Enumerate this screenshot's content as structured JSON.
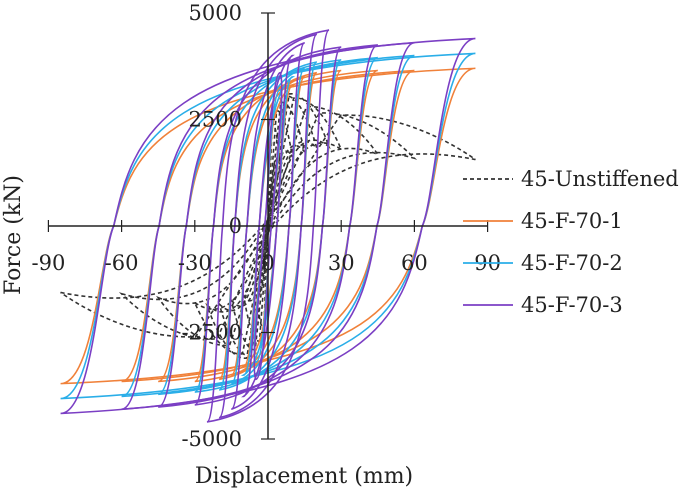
{
  "chart_data": {
    "type": "line",
    "title": "",
    "xlabel": "Displacement (mm)",
    "ylabel": "Force (kN)",
    "xlim": [
      -90,
      90
    ],
    "ylim": [
      -5000,
      5000
    ],
    "x_ticks": [
      -90,
      -60,
      -30,
      0,
      30,
      60,
      90
    ],
    "x_tick_labels": [
      "-90",
      "-60",
      "-30",
      "0",
      "30",
      "60",
      "90"
    ],
    "y_ticks": [
      -5000,
      -2500,
      0,
      2500,
      5000
    ],
    "y_tick_labels": [
      "-5000",
      "-2500",
      "0",
      "2500",
      "5000"
    ],
    "grid": false,
    "legend_position": "right",
    "series": [
      {
        "name": "45-Unstiffened",
        "color": "#333333",
        "dash": "dashed",
        "peak_force": 3100,
        "loops": [
          {
            "d": 5,
            "f": 2400
          },
          {
            "d": 10,
            "f": 2700
          },
          {
            "d": 15,
            "f": 2900
          },
          {
            "d": 20,
            "f": 3050
          },
          {
            "d": 25,
            "f": 3100
          },
          {
            "d": 30,
            "f": 3000
          },
          {
            "d": 45,
            "f": 2800
          },
          {
            "d": 60,
            "f": 2650
          },
          {
            "d": 85,
            "f": 2600
          }
        ]
      },
      {
        "name": "45-F-70-1",
        "color": "#f0813a",
        "dash": "solid",
        "loops": [
          {
            "d": 5,
            "f": 3000
          },
          {
            "d": 10,
            "f": 3300
          },
          {
            "d": 15,
            "f": 3500
          },
          {
            "d": 20,
            "f": 3600
          },
          {
            "d": 30,
            "f": 3650
          },
          {
            "d": 45,
            "f": 3650
          },
          {
            "d": 60,
            "f": 3650
          },
          {
            "d": 85,
            "f": 3700
          }
        ]
      },
      {
        "name": "45-F-70-2",
        "color": "#2aaee8",
        "dash": "solid",
        "loops": [
          {
            "d": 5,
            "f": 3200
          },
          {
            "d": 10,
            "f": 3500
          },
          {
            "d": 15,
            "f": 3700
          },
          {
            "d": 20,
            "f": 3850
          },
          {
            "d": 30,
            "f": 3900
          },
          {
            "d": 45,
            "f": 3950
          },
          {
            "d": 60,
            "f": 4000
          },
          {
            "d": 85,
            "f": 4050
          }
        ]
      },
      {
        "name": "45-F-70-3",
        "color": "#7b3fc4",
        "dash": "solid",
        "loops": [
          {
            "d": 5,
            "f": 3600
          },
          {
            "d": 10,
            "f": 4000
          },
          {
            "d": 15,
            "f": 4300
          },
          {
            "d": 20,
            "f": 4500
          },
          {
            "d": 25,
            "f": 4600
          },
          {
            "d": 30,
            "f": 4200
          },
          {
            "d": 45,
            "f": 4250
          },
          {
            "d": 60,
            "f": 4300
          },
          {
            "d": 85,
            "f": 4400
          }
        ]
      }
    ]
  }
}
